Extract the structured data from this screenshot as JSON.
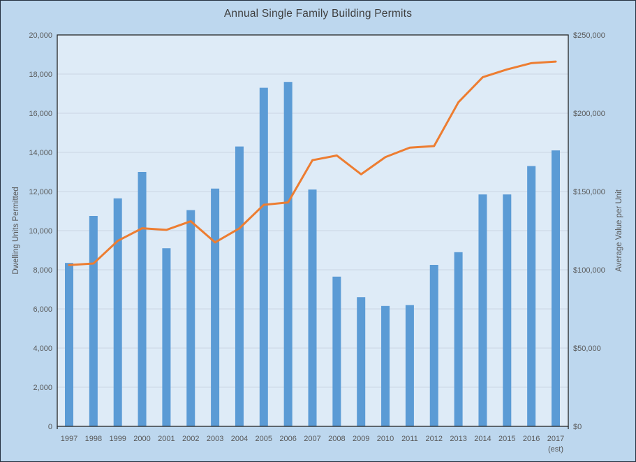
{
  "chart_data": {
    "type": "combo",
    "title": "Annual Single Family Building Permits",
    "categories": [
      "1997",
      "1998",
      "1999",
      "2000",
      "2001",
      "2002",
      "2003",
      "2004",
      "2005",
      "2006",
      "2007",
      "2008",
      "2009",
      "2010",
      "2011",
      "2012",
      "2013",
      "2014",
      "2015",
      "2016",
      "2017"
    ],
    "est_note": "(est)",
    "est_note_category": "2017",
    "series": [
      {
        "name": "Dwelling Units Permitted",
        "type": "bar",
        "axis": "left",
        "values": [
          8350,
          10750,
          11650,
          13000,
          9100,
          11050,
          12150,
          14300,
          17300,
          17600,
          12100,
          7650,
          6600,
          6150,
          6200,
          8250,
          8900,
          11850,
          11850,
          13300,
          14100
        ]
      },
      {
        "name": "Average Value per Unit",
        "type": "line",
        "axis": "right",
        "values": [
          103000,
          104000,
          118500,
          126500,
          125500,
          131000,
          117500,
          126500,
          141500,
          143000,
          170000,
          173000,
          161000,
          172000,
          178000,
          179000,
          207000,
          223000,
          228000,
          232000,
          233000
        ]
      }
    ],
    "left_axis": {
      "title": "Dwelling Units Permitted",
      "min": 0,
      "max": 20000,
      "step": 2000,
      "tick_labels": [
        "0",
        "2,000",
        "4,000",
        "6,000",
        "8,000",
        "10,000",
        "12,000",
        "14,000",
        "16,000",
        "18,000",
        "20,000"
      ]
    },
    "right_axis": {
      "title": "Average Value per Unit",
      "min": 0,
      "max": 250000,
      "step": 50000,
      "tick_labels": [
        "$0",
        "$50,000",
        "$100,000",
        "$150,000",
        "$200,000",
        "$250,000"
      ]
    },
    "legend": "none",
    "grid": "horizontal"
  },
  "colors": {
    "background": "#BDD7EE",
    "plot_background": "#DEEBF7",
    "gridline": "#CBD6E3",
    "axis_line": "#262626",
    "bar": "#5B9BD5",
    "line": "#ED7D31",
    "tick_label": "#595959",
    "title": "#3F3F3F"
  }
}
